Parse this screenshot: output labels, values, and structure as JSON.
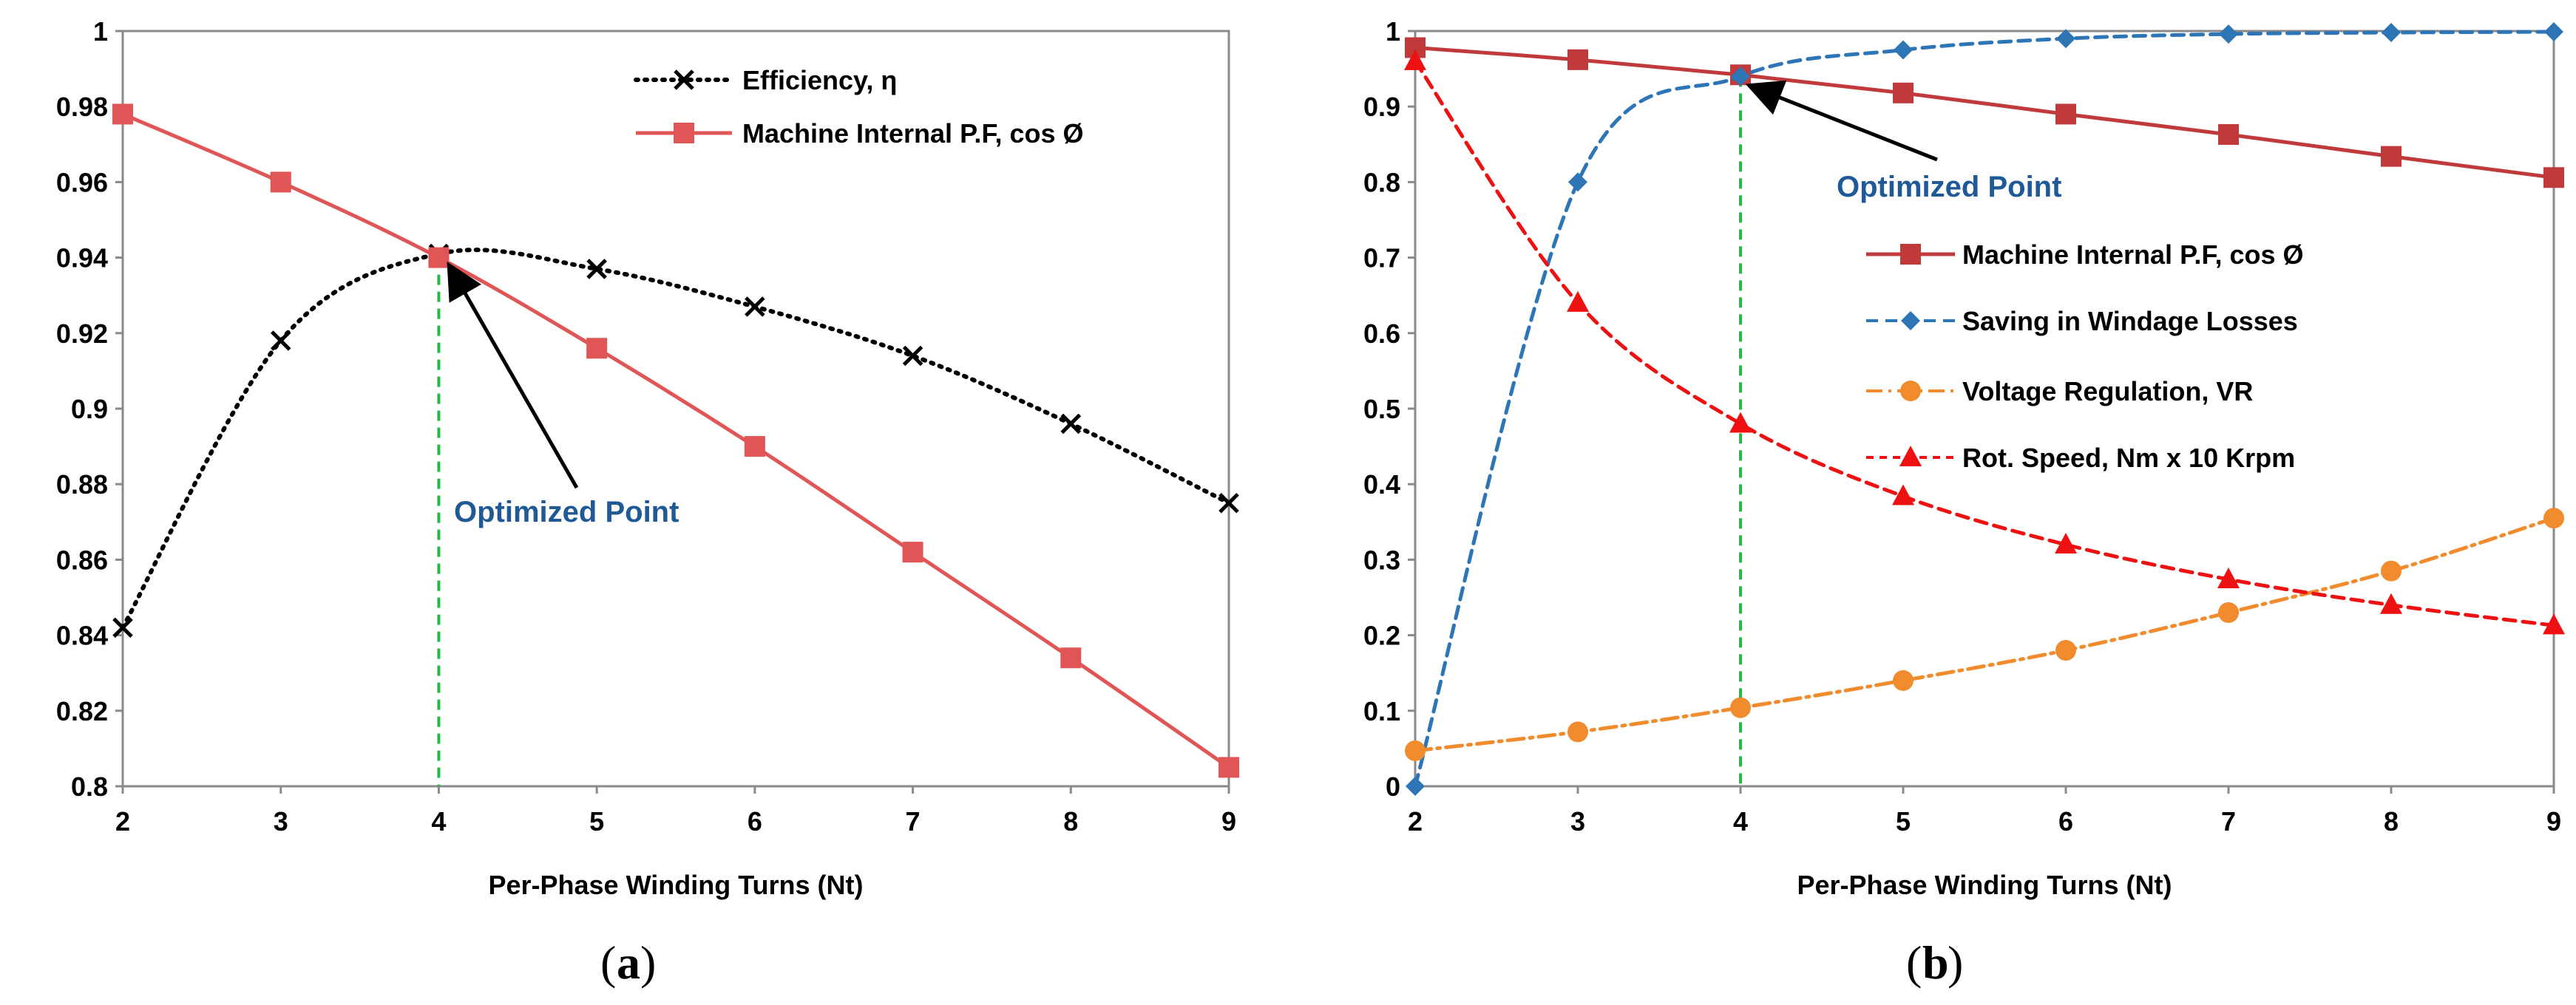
{
  "chart_data": [
    {
      "type": "line",
      "panel_label": "a",
      "xlabel": "Per-Phase Winding Turns (Nt)",
      "ylabel": "",
      "x": [
        2,
        3,
        4,
        5,
        6,
        7,
        8,
        9
      ],
      "xlim": [
        2,
        9
      ],
      "ylim": [
        0.8,
        1.0
      ],
      "xticks": [
        "2",
        "3",
        "4",
        "5",
        "6",
        "7",
        "8",
        "9"
      ],
      "yticks": [
        "0.8",
        "0.82",
        "0.84",
        "0.86",
        "0.88",
        "0.9",
        "0.92",
        "0.94",
        "0.96",
        "0.98",
        "1"
      ],
      "grid": false,
      "legend_position": "top-center",
      "series": [
        {
          "name": "Efficiency, η",
          "values": [
            0.842,
            0.918,
            0.941,
            0.937,
            0.927,
            0.914,
            0.896,
            0.875
          ],
          "color": "#000000",
          "style": "dotted",
          "marker": "x"
        },
        {
          "name": "Machine Internal P.F, cos Ø",
          "values": [
            0.978,
            0.96,
            0.94,
            0.916,
            0.89,
            0.862,
            0.834,
            0.805
          ],
          "color": "#e05555",
          "style": "solid",
          "marker": "square"
        }
      ],
      "annotation": {
        "text": "Optimized Point",
        "x": 4,
        "y": 0.94
      },
      "vline": {
        "x": 4,
        "color": "#22bb44"
      }
    },
    {
      "type": "line",
      "panel_label": "b",
      "xlabel": "Per-Phase Winding Turns (Nt)",
      "ylabel": "",
      "x": [
        2,
        3,
        4,
        5,
        6,
        7,
        8,
        9
      ],
      "xlim": [
        2,
        9
      ],
      "ylim": [
        0,
        1
      ],
      "xticks": [
        "2",
        "3",
        "4",
        "5",
        "6",
        "7",
        "8",
        "9"
      ],
      "yticks": [
        "0",
        "0.1",
        "0.2",
        "0.3",
        "0.4",
        "0.5",
        "0.6",
        "0.7",
        "0.8",
        "0.9",
        "1"
      ],
      "grid": false,
      "legend_position": "center-right",
      "series": [
        {
          "name": "Machine Internal P.F, cos Ø",
          "values": [
            0.978,
            0.962,
            0.942,
            0.918,
            0.89,
            0.863,
            0.834,
            0.806
          ],
          "color": "#c0393b",
          "style": "solid",
          "marker": "square"
        },
        {
          "name": "Saving in Windage Losses",
          "values": [
            0.0,
            0.8,
            0.94,
            0.975,
            0.99,
            0.996,
            0.998,
            0.999
          ],
          "color": "#2e75b6",
          "style": "dashed",
          "marker": "diamond"
        },
        {
          "name": "Voltage Regulation, VR",
          "values": [
            0.047,
            0.072,
            0.104,
            0.14,
            0.18,
            0.23,
            0.285,
            0.355
          ],
          "color": "#f08c2e",
          "style": "dashdot",
          "marker": "circle"
        },
        {
          "name": "Rot. Speed, Nm x 10 Krpm",
          "values": [
            0.96,
            0.64,
            0.48,
            0.384,
            0.32,
            0.274,
            0.24,
            0.213
          ],
          "color": "#ee1111",
          "style": "dashed",
          "marker": "triangle"
        }
      ],
      "annotation": {
        "text": "Optimized Point",
        "x": 4,
        "y": 0.94
      },
      "vline": {
        "x": 4,
        "color": "#22bb44"
      }
    }
  ]
}
